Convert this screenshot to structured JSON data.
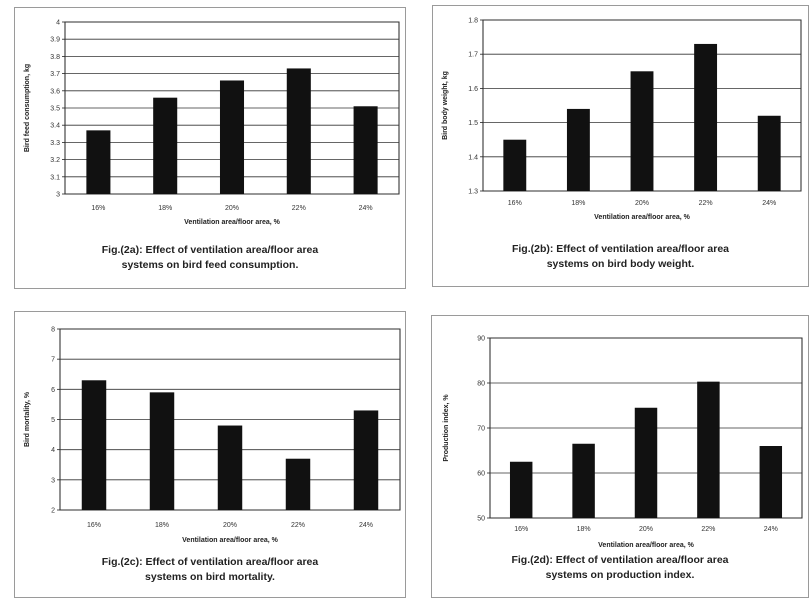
{
  "colors": {
    "bar": "#111111",
    "grid": "#333333",
    "frame": "#9a9a9a",
    "background": "#ffffff"
  },
  "chart_data": [
    {
      "type": "bar",
      "categories": [
        "16%",
        "18%",
        "20%",
        "22%",
        "24%"
      ],
      "values": [
        3.37,
        3.56,
        3.66,
        3.73,
        3.51
      ],
      "xlabel": "Ventilation area/floor area, %",
      "ylabel": "Bird feed consumption, kg",
      "ylim": [
        3,
        4
      ],
      "yticks": [
        "3",
        "3.1",
        "3.2",
        "3.3",
        "3.4",
        "3.5",
        "3.6",
        "3.7",
        "3.8",
        "3.9",
        "4"
      ],
      "grid": true,
      "caption_line1": "Fig.(2a): Effect of  ventilation area/floor area",
      "caption_line2": "systems on bird feed consumption."
    },
    {
      "type": "bar",
      "categories": [
        "16%",
        "18%",
        "20%",
        "22%",
        "24%"
      ],
      "values": [
        1.45,
        1.54,
        1.65,
        1.73,
        1.52
      ],
      "xlabel": "Ventilation area/floor area, %",
      "ylabel": "Bird body weight, kg",
      "ylim": [
        1.3,
        1.8
      ],
      "yticks": [
        "1.3",
        "1.4",
        "1.5",
        "1.6",
        "1.7",
        "1.8"
      ],
      "grid": true,
      "caption_line1": "Fig.(2b): Effect of  ventilation area/floor area",
      "caption_line2": "systems on bird body weight."
    },
    {
      "type": "bar",
      "categories": [
        "16%",
        "18%",
        "20%",
        "22%",
        "24%"
      ],
      "values": [
        6.3,
        5.9,
        4.8,
        3.7,
        5.3
      ],
      "xlabel": "Ventilation area/floor area, %",
      "ylabel": "Bird mortality, %",
      "ylim": [
        2,
        8
      ],
      "yticks": [
        "2",
        "3",
        "4",
        "5",
        "6",
        "7",
        "8"
      ],
      "grid": true,
      "caption_line1": "Fig.(2c): Effect of  ventilation area/floor area",
      "caption_line2": "systems on bird mortality."
    },
    {
      "type": "bar",
      "categories": [
        "16%",
        "18%",
        "20%",
        "22%",
        "24%"
      ],
      "values": [
        62.5,
        66.5,
        74.5,
        80.3,
        66
      ],
      "xlabel": "Ventilation area/floor area, %",
      "ylabel": "Production index, %",
      "ylim": [
        50,
        90
      ],
      "yticks": [
        "50",
        "60",
        "70",
        "80",
        "90"
      ],
      "grid": true,
      "caption_line1": "Fig.(2d): Effect of  ventilation area/floor area",
      "caption_line2": "systems on production index."
    }
  ]
}
